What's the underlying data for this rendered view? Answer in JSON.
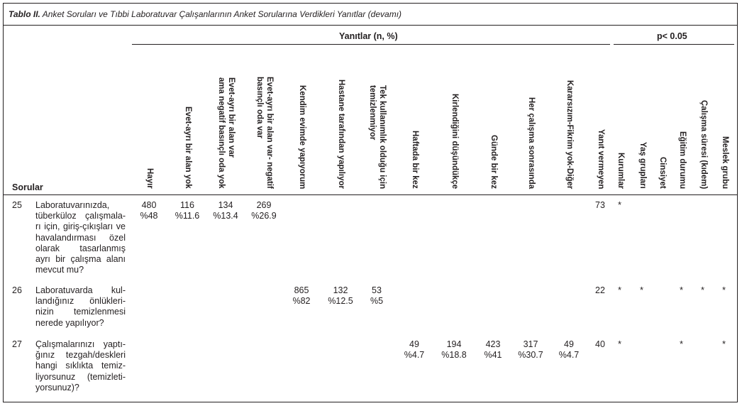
{
  "table": {
    "title_bold": "Tablo II.",
    "title_rest": " Anket Soruları ve Tıbbi Laboratuvar Çalışanlarının Anket Sorularına Verdikleri Yanıtlar (devamı)",
    "group_answers": "Yanıtlar (n, %)",
    "group_significance": "p< 0.05",
    "questions_header": "Sorular",
    "answer_columns": [
      [
        "Hayır"
      ],
      [
        "Evet-ayrı bir alan yok"
      ],
      [
        "Evet-ayrı bir alan var",
        "ama negatif basınçlı oda yok"
      ],
      [
        "Evet-ayrı bir alan var- negatif",
        "basınçlı oda var"
      ],
      [
        "Kendim evimde yapıyorum"
      ],
      [
        "Hastane tarafından yapılıyor"
      ],
      [
        "Tek kullanımlık olduğu için",
        "temizlenmiyor"
      ],
      [
        "Haftada bir kez"
      ],
      [
        "Kirlendiğini düşündükçe"
      ],
      [
        "Günde bir kez"
      ],
      [
        "Her çalışma sonrasında"
      ],
      [
        "Kararsızım-Fikrim yok-Diğer"
      ],
      [
        "Yanıt vermeyen"
      ]
    ],
    "sig_columns": [
      "Kurumlar",
      "Yaş grupları",
      "Cinsiyet",
      "Eğitim durumu",
      "Çalışma süresi (kıdem)",
      "Meslek grubu"
    ],
    "rows": [
      {
        "no": "25",
        "question_lines": [
          "Laboratuvarınızda,",
          "tüberküloz çalışmala-",
          "rı için, giriş-çıkışları ve",
          "havalandırması özel",
          "olarak tasarlanmış",
          "ayrı bir çalışma alanı",
          "mevcut mu?"
        ],
        "answers": [
          {
            "col": 0,
            "n": "480",
            "pct": "%48"
          },
          {
            "col": 1,
            "n": "116",
            "pct": "%11.6"
          },
          {
            "col": 2,
            "n": "134",
            "pct": "%13.4"
          },
          {
            "col": 3,
            "n": "269",
            "pct": "%26.9"
          }
        ],
        "no_answer": "73",
        "sig": [
          "*",
          "",
          "",
          "",
          "",
          ""
        ]
      },
      {
        "no": "26",
        "question_lines": [
          "Laboratuvarda kul-",
          "landığınız önlükleri-",
          "nizin temizlenmesi",
          "nerede yapılıyor?"
        ],
        "answers": [
          {
            "col": 4,
            "n": "865",
            "pct": "%82"
          },
          {
            "col": 5,
            "n": "132",
            "pct": "%12.5"
          },
          {
            "col": 6,
            "n": "53",
            "pct": "%5"
          }
        ],
        "no_answer": "22",
        "sig": [
          "*",
          "*",
          "",
          "*",
          "*",
          "*"
        ]
      },
      {
        "no": "27",
        "question_lines": [
          "Çalışmalarınızı yaptı-",
          "ğınız tezgah/deskleri",
          "hangi sıklıkta temiz-",
          "liyorsunuz (temizleti-",
          "yorsunuz)?"
        ],
        "answers": [
          {
            "col": 7,
            "n": "49",
            "pct": "%4.7"
          },
          {
            "col": 8,
            "n": "194",
            "pct": "%18.8"
          },
          {
            "col": 9,
            "n": "423",
            "pct": "%41"
          },
          {
            "col": 10,
            "n": "317",
            "pct": "%30.7"
          },
          {
            "col": 11,
            "n": "49",
            "pct": "%4.7"
          }
        ],
        "no_answer": "40",
        "sig": [
          "*",
          "",
          "",
          "*",
          "",
          "*"
        ]
      }
    ]
  }
}
